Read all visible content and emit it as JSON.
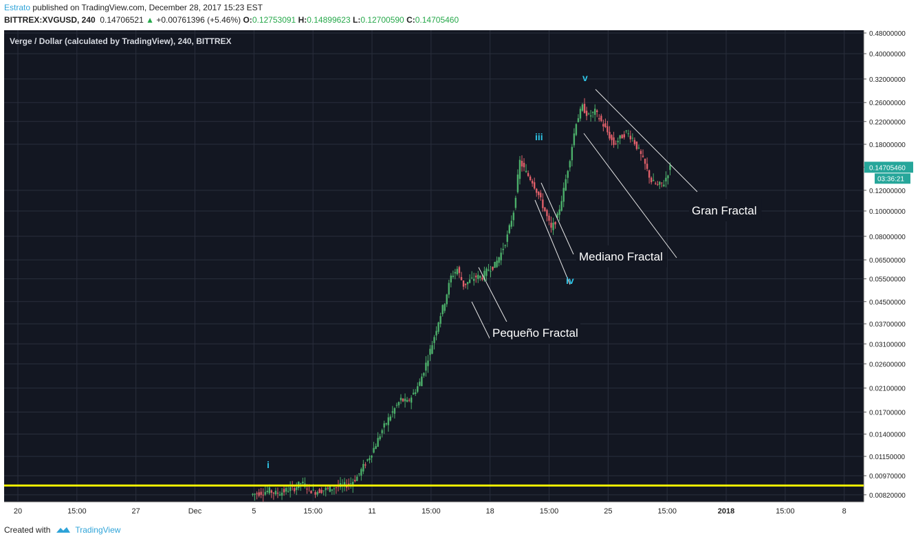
{
  "header": {
    "author": "Estrato",
    "published_text": "published on TradingView.com, December 28, 2017 15:23 EST",
    "symbol": "BITTREX:XVGUSD, 240",
    "last": "0.14706521",
    "change": "+0.00761396 (+5.46%)",
    "o_label": "O:",
    "o_value": "0.12753091",
    "h_label": "H:",
    "h_value": "0.14899623",
    "l_label": "L:",
    "l_value": "0.12700590",
    "c_label": "C:",
    "c_value": "0.14705460"
  },
  "footer": {
    "created_with": "Created with",
    "brand": "TradingView"
  },
  "colors": {
    "background": "#131722",
    "up": "#4caf6a",
    "down": "#e0606a",
    "support_line": "#f0f000",
    "wave_label": "#2ec4e6",
    "price_badge": "#26a69a"
  },
  "chart_data": {
    "type": "candlestick",
    "title": "Verge / Dollar (calculated by TradingView), 240, BITTREX",
    "scale": "log",
    "ylim": [
      0.0079,
      0.48
    ],
    "y_ticks": [
      "0.48000000",
      "0.40000000",
      "0.32000000",
      "0.26000000",
      "0.22000000",
      "0.18000000",
      "0.14705460",
      "0.12000000",
      "0.10000000",
      "0.08000000",
      "0.06500000",
      "0.05500000",
      "0.04500000",
      "0.03700000",
      "0.03100000",
      "0.02600000",
      "0.02100000",
      "0.01700000",
      "0.01400000",
      "0.01150000",
      "0.00970000",
      "0.00820000"
    ],
    "x_ticks": [
      "20",
      "15:00",
      "27",
      "Dec",
      "5",
      "15:00",
      "11",
      "15:00",
      "18",
      "15:00",
      "25",
      "15:00",
      "2018",
      "15:00",
      "8"
    ],
    "last_price": "0.14705460",
    "countdown": "03:36:21",
    "support_level": 0.0089,
    "annotations": [
      "Pequeño Fractal",
      "Mediano Fractal",
      "Gran Fractal"
    ],
    "wave_labels": [
      "i",
      "iii",
      "iv",
      "v"
    ],
    "price_path": [
      [
        0.0082,
        0
      ],
      [
        0.0083,
        12
      ],
      [
        0.0084,
        24
      ],
      [
        0.0085,
        36
      ],
      [
        0.0083,
        48
      ],
      [
        0.0084,
        60
      ],
      [
        0.0086,
        72
      ],
      [
        0.0087,
        84
      ],
      [
        0.0091,
        96
      ],
      [
        0.0088,
        108
      ],
      [
        0.0084,
        120
      ],
      [
        0.0085,
        132
      ],
      [
        0.0086,
        144
      ],
      [
        0.0087,
        156
      ],
      [
        0.0088,
        168
      ],
      [
        0.0089,
        180
      ],
      [
        0.0091,
        192
      ],
      [
        0.0096,
        204
      ],
      [
        0.0105,
        216
      ],
      [
        0.0115,
        228
      ],
      [
        0.0128,
        240
      ],
      [
        0.0145,
        252
      ],
      [
        0.016,
        264
      ],
      [
        0.0175,
        276
      ],
      [
        0.019,
        288
      ],
      [
        0.0185,
        300
      ],
      [
        0.02,
        312
      ],
      [
        0.022,
        324
      ],
      [
        0.026,
        336
      ],
      [
        0.031,
        348
      ],
      [
        0.038,
        360
      ],
      [
        0.045,
        372
      ],
      [
        0.056,
        384
      ],
      [
        0.06,
        396
      ],
      [
        0.052,
        408
      ],
      [
        0.054,
        420
      ],
      [
        0.056,
        432
      ],
      [
        0.056,
        444
      ],
      [
        0.06,
        456
      ],
      [
        0.062,
        468
      ],
      [
        0.069,
        480
      ],
      [
        0.08,
        492
      ],
      [
        0.1,
        504
      ],
      [
        0.155,
        516
      ],
      [
        0.14,
        528
      ],
      [
        0.13,
        540
      ],
      [
        0.115,
        552
      ],
      [
        0.1,
        564
      ],
      [
        0.085,
        576
      ],
      [
        0.095,
        588
      ],
      [
        0.12,
        600
      ],
      [
        0.16,
        612
      ],
      [
        0.22,
        624
      ],
      [
        0.25,
        636
      ],
      [
        0.23,
        648
      ],
      [
        0.24,
        660
      ],
      [
        0.22,
        672
      ],
      [
        0.2,
        684
      ],
      [
        0.18,
        696
      ],
      [
        0.19,
        708
      ],
      [
        0.2,
        720
      ],
      [
        0.19,
        732
      ],
      [
        0.17,
        744
      ],
      [
        0.15,
        756
      ],
      [
        0.13,
        768
      ],
      [
        0.125,
        780
      ],
      [
        0.128,
        792
      ],
      [
        0.147,
        804
      ]
    ]
  }
}
